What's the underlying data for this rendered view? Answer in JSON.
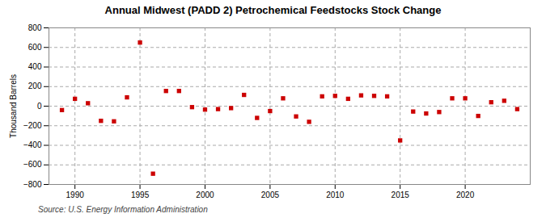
{
  "chart_data": {
    "type": "scatter",
    "title": "Annual Midwest (PADD 2) Petrochemical Feedstocks Stock Change",
    "ylabel": "Thousand Barrels",
    "source": "Source: U.S. Energy Information Administration",
    "x": [
      1989,
      1990,
      1991,
      1992,
      1993,
      1994,
      1995,
      1996,
      1997,
      1998,
      1999,
      2000,
      2001,
      2002,
      2003,
      2004,
      2005,
      2006,
      2007,
      2008,
      2009,
      2010,
      2011,
      2012,
      2013,
      2014,
      2015,
      2016,
      2017,
      2018,
      2019,
      2020,
      2021,
      2022,
      2023,
      2024
    ],
    "values": [
      -40,
      75,
      30,
      -150,
      -155,
      90,
      650,
      -690,
      155,
      155,
      -10,
      -35,
      -30,
      -20,
      115,
      -120,
      -50,
      80,
      -105,
      -160,
      100,
      105,
      75,
      110,
      105,
      100,
      -350,
      -55,
      -75,
      -60,
      80,
      80,
      -100,
      40,
      55,
      -30
    ],
    "color": "#cc0000",
    "marker": "square",
    "xlim": [
      1988,
      2025
    ],
    "ylim": [
      -800,
      800
    ],
    "xticks": [
      1990,
      1995,
      2000,
      2005,
      2010,
      2015,
      2020
    ],
    "yticks": [
      -800,
      -600,
      -400,
      -200,
      0,
      200,
      400,
      600,
      800
    ],
    "grid": true
  }
}
